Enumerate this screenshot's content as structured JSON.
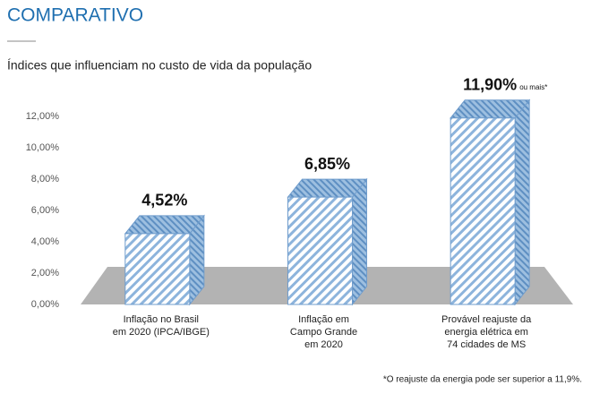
{
  "chart_data": {
    "type": "bar3d",
    "title": "COMPARATIVO",
    "subtitle": "Índices que influenciam no custo de vida da população",
    "categories": [
      "Inflação no Brasil\nem 2020 (IPCA/IBGE)",
      "Inflação em\nCampo Grande\nem 2020",
      "Provável reajuste da\nenergia elétrica em\n74 cidades de MS"
    ],
    "values": [
      4.52,
      6.85,
      11.9
    ],
    "value_labels": [
      "4,52%",
      "6,85%",
      "11,90%"
    ],
    "annotation": "ou mais*",
    "footnote": "*O reajuste da energia pode ser superior a 11,9%.",
    "color": "#8db4dc",
    "ylim": [
      0,
      12
    ],
    "yticks": [
      {
        "value": 0,
        "label": "0,00%"
      },
      {
        "value": 2,
        "label": "2,00%"
      },
      {
        "value": 4,
        "label": "4,00%"
      },
      {
        "value": 6,
        "label": "6,00%"
      },
      {
        "value": 8,
        "label": "8,00%"
      },
      {
        "value": 10,
        "label": "10,00%"
      },
      {
        "value": 12,
        "label": "12,00%"
      }
    ]
  }
}
